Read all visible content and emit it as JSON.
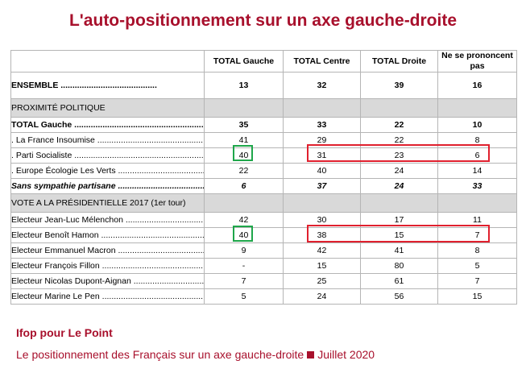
{
  "title": "L'auto-positionnement sur un axe gauche-droite",
  "columns": [
    "TOTAL Gauche",
    "TOTAL Centre",
    "TOTAL Droite",
    "Ne se prononcent pas"
  ],
  "ensemble": {
    "label": "ENSEMBLE",
    "values": [
      "13",
      "32",
      "39",
      "16"
    ]
  },
  "sections": [
    {
      "label": "PROXIMITÉ POLITIQUE",
      "rows": [
        {
          "label": "TOTAL Gauche",
          "values": [
            "35",
            "33",
            "22",
            "10"
          ],
          "style": "bold"
        },
        {
          "label": ". La France Insoumise",
          "values": [
            "41",
            "29",
            "22",
            "8"
          ],
          "style": "normal"
        },
        {
          "label": ". Parti Socialiste",
          "values": [
            "40",
            "31",
            "23",
            "6"
          ],
          "style": "normal"
        },
        {
          "label": ". Europe Écologie Les Verts",
          "values": [
            "22",
            "40",
            "24",
            "14"
          ],
          "style": "normal"
        },
        {
          "label": "Sans sympathie partisane",
          "values": [
            "6",
            "37",
            "24",
            "33"
          ],
          "style": "italic"
        }
      ]
    },
    {
      "label": "VOTE A LA PRÉSIDENTIELLE 2017 (1er tour)",
      "rows": [
        {
          "label": "Electeur Jean-Luc Mélenchon",
          "values": [
            "42",
            "30",
            "17",
            "11"
          ],
          "style": "normal"
        },
        {
          "label": "Electeur Benoît Hamon",
          "values": [
            "40",
            "38",
            "15",
            "7"
          ],
          "style": "normal"
        },
        {
          "label": "Electeur Emmanuel Macron",
          "values": [
            "9",
            "42",
            "41",
            "8"
          ],
          "style": "normal"
        },
        {
          "label": "Electeur François Fillon",
          "values": [
            "-",
            "15",
            "80",
            "5"
          ],
          "style": "normal"
        },
        {
          "label": "Electeur Nicolas Dupont-Aignan",
          "values": [
            "7",
            "25",
            "61",
            "7"
          ],
          "style": "normal"
        },
        {
          "label": "Electeur Marine Le Pen",
          "values": [
            "5",
            "24",
            "56",
            "15"
          ],
          "style": "normal"
        }
      ]
    }
  ],
  "source": "Ifop pour Le Point",
  "subtitle_left": "Le positionnement des Français sur un axe gauche-droite",
  "subtitle_right": "Juillet 2020",
  "colors": {
    "accent": "#a8102c",
    "highlight_green": "#1ea64a",
    "highlight_red": "#e0202e",
    "section_bg": "#d9d9d9"
  }
}
